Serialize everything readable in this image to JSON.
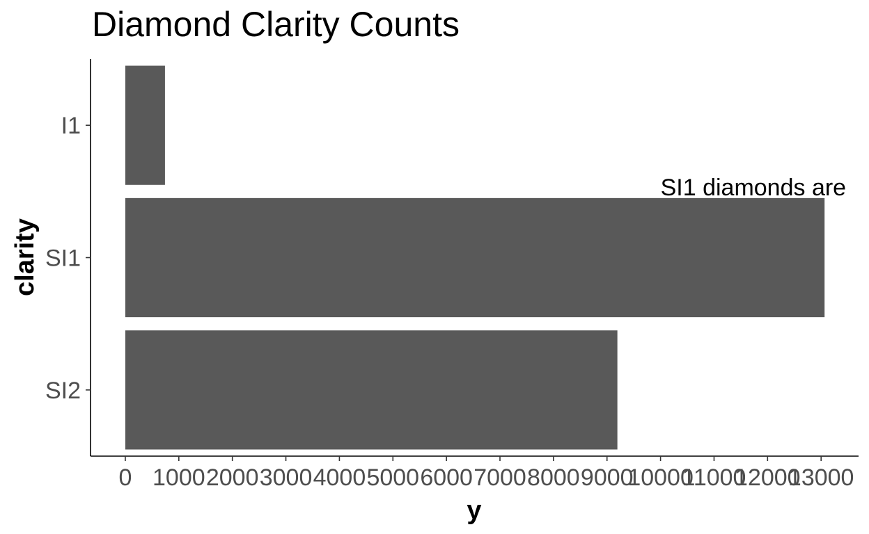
{
  "chart_data": {
    "type": "bar",
    "orientation": "horizontal",
    "title": "Diamond Clarity Counts",
    "xlabel": "y",
    "ylabel": "clarity",
    "categories": [
      "I1",
      "SI1",
      "SI2"
    ],
    "values": [
      741,
      13065,
      9194
    ],
    "xlim": [
      -650,
      13700
    ],
    "x_ticks": [
      0,
      1000,
      2000,
      3000,
      4000,
      5000,
      6000,
      7000,
      8000,
      9000,
      10000,
      11000,
      12000,
      13000
    ],
    "annotation": {
      "text": "SI1 diamonds are",
      "x": 10000,
      "category": "SI1"
    },
    "bar_color": "#595959",
    "grid": false,
    "legend": "none"
  }
}
